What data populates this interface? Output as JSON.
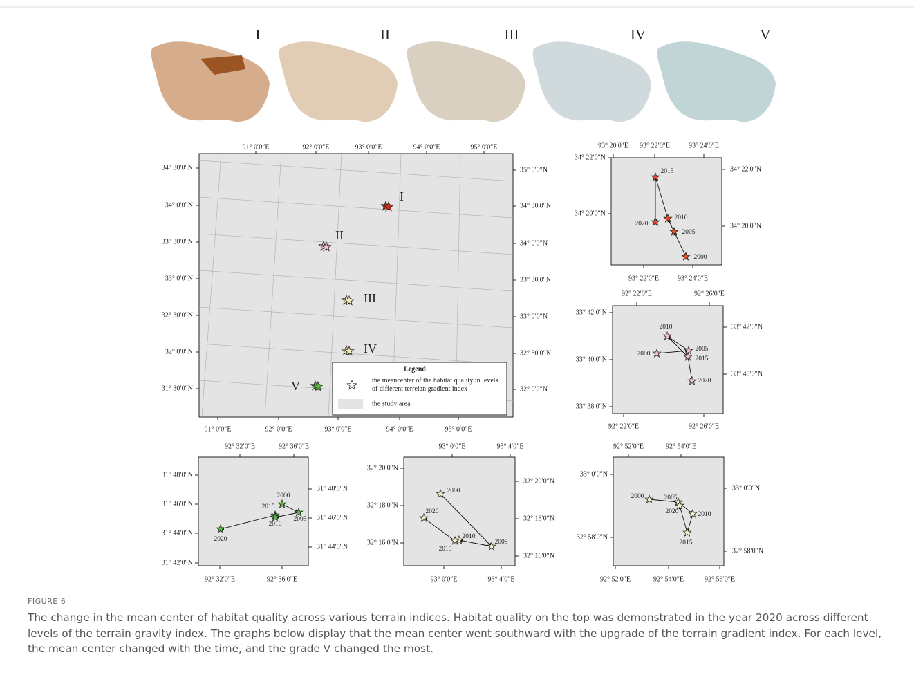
{
  "top_panels": {
    "labels": [
      "I",
      "II",
      "III",
      "IV",
      "V"
    ]
  },
  "main_map": {
    "top_ticks": [
      "91° 0′0″E",
      "92° 0′0″E",
      "93° 0′0″E",
      "94° 0′0″E",
      "95° 0′0″E"
    ],
    "bottom_ticks": [
      "91° 0′0″E",
      "92° 0′0″E",
      "93° 0′0″E",
      "94° 0′0″E",
      "95° 0′0″E"
    ],
    "left_ticks": [
      "34° 30′0″N",
      "34° 0′0″N",
      "33° 30′0″N",
      "33° 0′0″N",
      "32° 30′0″N",
      "32° 0′0″N",
      "31° 30′0″N"
    ],
    "right_ticks": [
      "35° 0′0″N",
      "34° 30′0″N",
      "34° 0′0″N",
      "33° 30′0″N",
      "33° 0′0″N",
      "32° 30′0″N",
      "32° 0′0″N"
    ],
    "point_labels": [
      "I",
      "II",
      "III",
      "IV",
      "V"
    ],
    "legend": {
      "title": "Legend",
      "items": [
        "the meancenter of the habitat quality in levels of different terreian gradient index",
        "the study area"
      ]
    }
  },
  "insets": [
    {
      "top_ticks": [
        "93° 20′0″E",
        "93° 22′0″E",
        "93° 24′0″E"
      ],
      "bottom_ticks": [
        "93° 22′0″E",
        "93° 24′0″E"
      ],
      "left_ticks": [
        "34° 22′0″N",
        "34° 20′0″N"
      ],
      "right_ticks": [
        "34° 22′0″N",
        "34° 20′0″N"
      ],
      "years": [
        "2015",
        "2020",
        "2010",
        "2005",
        "2000"
      ]
    },
    {
      "top_ticks": [
        "92° 22′0″E",
        "92° 26′0″E"
      ],
      "bottom_ticks": [
        "92° 22′0″E",
        "92° 26′0″E"
      ],
      "left_ticks": [
        "33° 42′0″N",
        "33° 40′0″N",
        "33° 38′0″N"
      ],
      "right_ticks": [
        "33° 42′0″N",
        "33° 40′0″N"
      ],
      "years": [
        "2010",
        "2005",
        "2015",
        "2000",
        "2020"
      ]
    },
    {
      "top_ticks": [
        "92° 32′0″E",
        "92° 36′0″E"
      ],
      "bottom_ticks": [
        "92° 32′0″E",
        "92° 36′0″E"
      ],
      "left_ticks": [
        "31° 48′0″N",
        "31° 46′0″N",
        "31° 44′0″N",
        "31° 42′0″N"
      ],
      "right_ticks": [
        "31° 48′0″N",
        "31° 46′0″N",
        "31° 44′0″N"
      ],
      "years": [
        "2000",
        "2015",
        "2010",
        "2005",
        "2020"
      ]
    },
    {
      "top_ticks": [
        "93° 0′0″E",
        "93° 4′0″E"
      ],
      "bottom_ticks": [
        "93° 0′0″E",
        "93° 4′0″E"
      ],
      "left_ticks": [
        "32° 20′0″N",
        "32° 18′0″N",
        "32° 16′0″N"
      ],
      "right_ticks": [
        "32° 20′0″N",
        "32° 18′0″N",
        "32° 16′0″N"
      ],
      "years": [
        "2000",
        "2020",
        "2010",
        "2015",
        "2005"
      ]
    },
    {
      "top_ticks": [
        "92° 52′0″E",
        "92° 54′0″E"
      ],
      "bottom_ticks": [
        "92° 52′0″E",
        "92° 54′0″E",
        "92° 56′0″E"
      ],
      "left_ticks": [
        "33° 0′0″N",
        "32° 58′0″N"
      ],
      "right_ticks": [
        "33° 0′0″N",
        "32° 58′0″N"
      ],
      "years": [
        "2000",
        "2005",
        "2020",
        "2010",
        "2015"
      ]
    }
  ],
  "caption": {
    "label": "FIGURE 6",
    "text": "The change in the mean center of habitat quality across various terrain indices. Habitat quality on the top was demonstrated in the year 2020 across different levels of the terrain gravity index. The graphs below display that the mean center went southward with the upgrade of the terrain gradient index. For each level, the mean center changed with the time, and the grade V changed the most."
  }
}
